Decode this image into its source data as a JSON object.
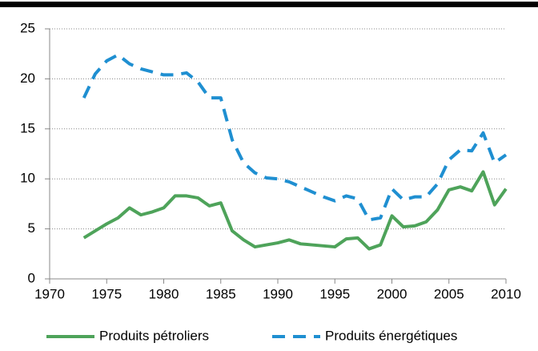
{
  "chart_data": {
    "type": "line",
    "x": [
      1973,
      1974,
      1975,
      1976,
      1977,
      1978,
      1979,
      1980,
      1981,
      1982,
      1983,
      1984,
      1985,
      1986,
      1987,
      1988,
      1989,
      1990,
      1991,
      1992,
      1993,
      1994,
      1995,
      1996,
      1997,
      1998,
      1999,
      2000,
      2001,
      2002,
      2003,
      2004,
      2005,
      2006,
      2007,
      2008,
      2009,
      2010
    ],
    "series": [
      {
        "name": "Produits pétroliers",
        "color": "#4ea35a",
        "dashed": false,
        "values": [
          4.1,
          4.8,
          5.5,
          6.1,
          7.1,
          6.4,
          6.7,
          7.1,
          8.3,
          8.3,
          8.1,
          7.3,
          7.6,
          4.8,
          3.9,
          3.2,
          3.4,
          3.6,
          3.9,
          3.5,
          3.4,
          3.3,
          3.2,
          4.0,
          4.1,
          3.0,
          3.4,
          6.3,
          5.2,
          5.3,
          5.7,
          6.9,
          8.9,
          9.2,
          8.8,
          10.7,
          7.4,
          9.0
        ]
      },
      {
        "name": "Produits énergétiques",
        "color": "#1f8fd1",
        "dashed": true,
        "values": [
          18.1,
          20.5,
          21.8,
          22.4,
          21.5,
          21.0,
          20.7,
          20.4,
          20.4,
          20.6,
          19.7,
          18.1,
          18.1,
          13.9,
          11.6,
          10.6,
          10.1,
          10.0,
          9.7,
          9.2,
          8.7,
          8.2,
          7.8,
          8.3,
          8.0,
          5.9,
          6.1,
          9.0,
          7.9,
          8.2,
          8.2,
          9.5,
          11.9,
          12.9,
          12.8,
          14.6,
          11.6,
          12.4
        ]
      }
    ],
    "xlim": [
      1970,
      2010
    ],
    "xticks": [
      1970,
      1975,
      1980,
      1985,
      1990,
      1995,
      2000,
      2005,
      2010
    ],
    "ylim": [
      0,
      25
    ],
    "yticks": [
      0,
      5,
      10,
      15,
      20,
      25
    ],
    "grid": true,
    "legend": "bottom"
  }
}
